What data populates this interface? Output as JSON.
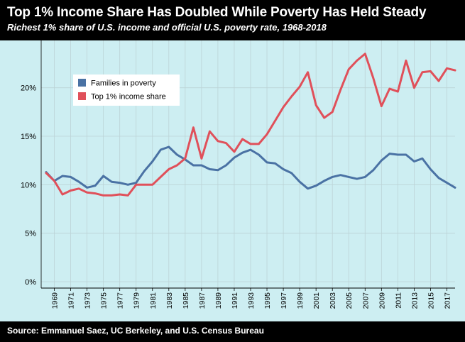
{
  "header": {
    "title": "Top 1% Income Share Has Doubled While Poverty Has Held Steady",
    "subtitle": "Richest 1% share of U.S. income and official U.S. poverty rate, 1968-2018"
  },
  "footer": {
    "source": "Source: Emmanuel Saez, UC Berkeley, and U.S. Census Bureau"
  },
  "colors": {
    "background": "#cdeef2",
    "frame": "#000000",
    "poverty": "#4a72a4",
    "top1": "#e0505a"
  },
  "chart_data": {
    "type": "line",
    "title": "Top 1% Income Share Has Doubled While Poverty Has Held Steady",
    "subtitle": "Richest 1% share of U.S. income and official U.S. poverty rate, 1968-2018",
    "xlabel": "",
    "ylabel": "",
    "xlim": [
      1968,
      2018
    ],
    "ylim": [
      0,
      24
    ],
    "x_ticks": [
      1969,
      1971,
      1973,
      1975,
      1977,
      1979,
      1981,
      1983,
      1985,
      1987,
      1989,
      1991,
      1993,
      1995,
      1997,
      1999,
      2001,
      2003,
      2005,
      2007,
      2009,
      2011,
      2013,
      2015,
      2017
    ],
    "y_ticks": [
      0,
      5,
      10,
      15,
      20
    ],
    "y_tick_labels": [
      "0%",
      "5%",
      "10%",
      "15%",
      "20%"
    ],
    "grid": true,
    "legend_position": "top-left",
    "x": [
      1968,
      1969,
      1970,
      1971,
      1972,
      1973,
      1974,
      1975,
      1976,
      1977,
      1978,
      1979,
      1980,
      1981,
      1982,
      1983,
      1984,
      1985,
      1986,
      1987,
      1988,
      1989,
      1990,
      1991,
      1992,
      1993,
      1994,
      1995,
      1996,
      1997,
      1998,
      1999,
      2000,
      2001,
      2002,
      2003,
      2004,
      2005,
      2006,
      2007,
      2008,
      2009,
      2010,
      2011,
      2012,
      2013,
      2014,
      2015,
      2016,
      2017,
      2018
    ],
    "series": [
      {
        "name": "Families in poverty",
        "color": "#4a72a4",
        "values": [
          11.3,
          10.4,
          10.9,
          10.8,
          10.3,
          9.7,
          9.9,
          10.9,
          10.3,
          10.2,
          10.0,
          10.2,
          11.4,
          12.4,
          13.6,
          13.9,
          13.1,
          12.6,
          12.0,
          12.0,
          11.6,
          11.5,
          12.0,
          12.8,
          13.3,
          13.6,
          13.1,
          12.3,
          12.2,
          11.6,
          11.2,
          10.3,
          9.6,
          9.9,
          10.4,
          10.8,
          11.0,
          10.8,
          10.6,
          10.8,
          11.5,
          12.5,
          13.2,
          13.1,
          13.1,
          12.4,
          12.7,
          11.6,
          10.7,
          10.2,
          9.7
        ]
      },
      {
        "name": "Top 1% income share",
        "color": "#e0505a",
        "values": [
          11.2,
          10.4,
          9.0,
          9.4,
          9.6,
          9.2,
          9.1,
          8.9,
          8.9,
          9.0,
          8.9,
          10.0,
          10.0,
          10.0,
          10.8,
          11.6,
          12.0,
          12.7,
          15.9,
          12.7,
          15.5,
          14.5,
          14.3,
          13.4,
          14.7,
          14.2,
          14.2,
          15.2,
          16.6,
          18.0,
          19.1,
          20.1,
          21.6,
          18.2,
          16.9,
          17.5,
          19.8,
          21.9,
          22.8,
          23.5,
          21.0,
          18.1,
          19.9,
          19.6,
          22.8,
          20.0,
          21.6,
          21.7,
          20.7,
          22.0,
          21.8
        ]
      }
    ]
  }
}
